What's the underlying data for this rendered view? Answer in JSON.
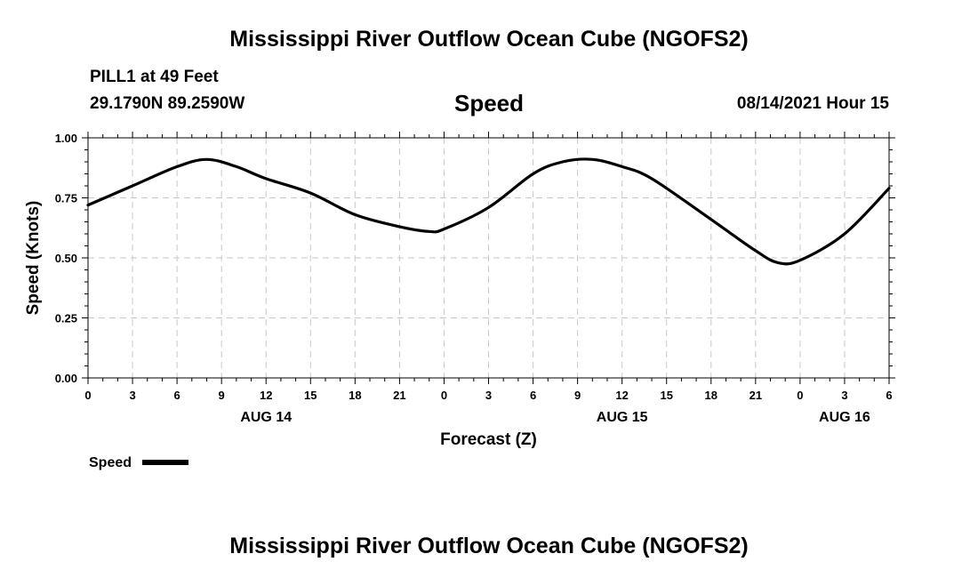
{
  "header": {
    "title": "Mississippi River Outflow Ocean Cube (NGOFS2)",
    "station": "PILL1 at 49 Feet",
    "coords": "29.1790N  89.2590W",
    "variable": "Speed",
    "datetime": "08/14/2021 Hour 15"
  },
  "footer": {
    "title": "Mississippi River Outflow Ocean Cube (NGOFS2)"
  },
  "chart_data": {
    "type": "line",
    "xlabel": "Forecast (Z)",
    "ylabel": "Speed (Knots)",
    "ylim": [
      0,
      1
    ],
    "yticks": [
      0,
      0.25,
      0.5,
      0.75,
      1.0
    ],
    "ytick_labels": [
      "0.00",
      "0.25",
      "0.50",
      "0.75",
      "1.00"
    ],
    "xlim": [
      0,
      54
    ],
    "xticks": [
      0,
      3,
      6,
      9,
      12,
      15,
      18,
      21,
      24,
      27,
      30,
      33,
      36,
      39,
      42,
      45,
      48,
      51,
      54
    ],
    "xtick_labels": [
      "0",
      "3",
      "6",
      "9",
      "12",
      "15",
      "18",
      "21",
      "0",
      "3",
      "6",
      "9",
      "12",
      "15",
      "18",
      "21",
      "0",
      "3",
      "6"
    ],
    "day_labels": [
      {
        "hour": 12,
        "label": "AUG 14"
      },
      {
        "hour": 36,
        "label": "AUG 15"
      },
      {
        "hour": 51,
        "label": "AUG 16"
      }
    ],
    "grid": true,
    "legend_position": "bottom-left",
    "series": [
      {
        "name": "Speed",
        "color": "#000000",
        "x": [
          0,
          3,
          6,
          8,
          10,
          12,
          15,
          18,
          21,
          23,
          24,
          27,
          30,
          32,
          34,
          36,
          38,
          42,
          45,
          46.5,
          48,
          51,
          54
        ],
        "values": [
          0.72,
          0.8,
          0.88,
          0.91,
          0.88,
          0.83,
          0.77,
          0.68,
          0.63,
          0.61,
          0.62,
          0.71,
          0.85,
          0.9,
          0.91,
          0.88,
          0.83,
          0.66,
          0.53,
          0.48,
          0.49,
          0.6,
          0.79
        ]
      }
    ]
  }
}
